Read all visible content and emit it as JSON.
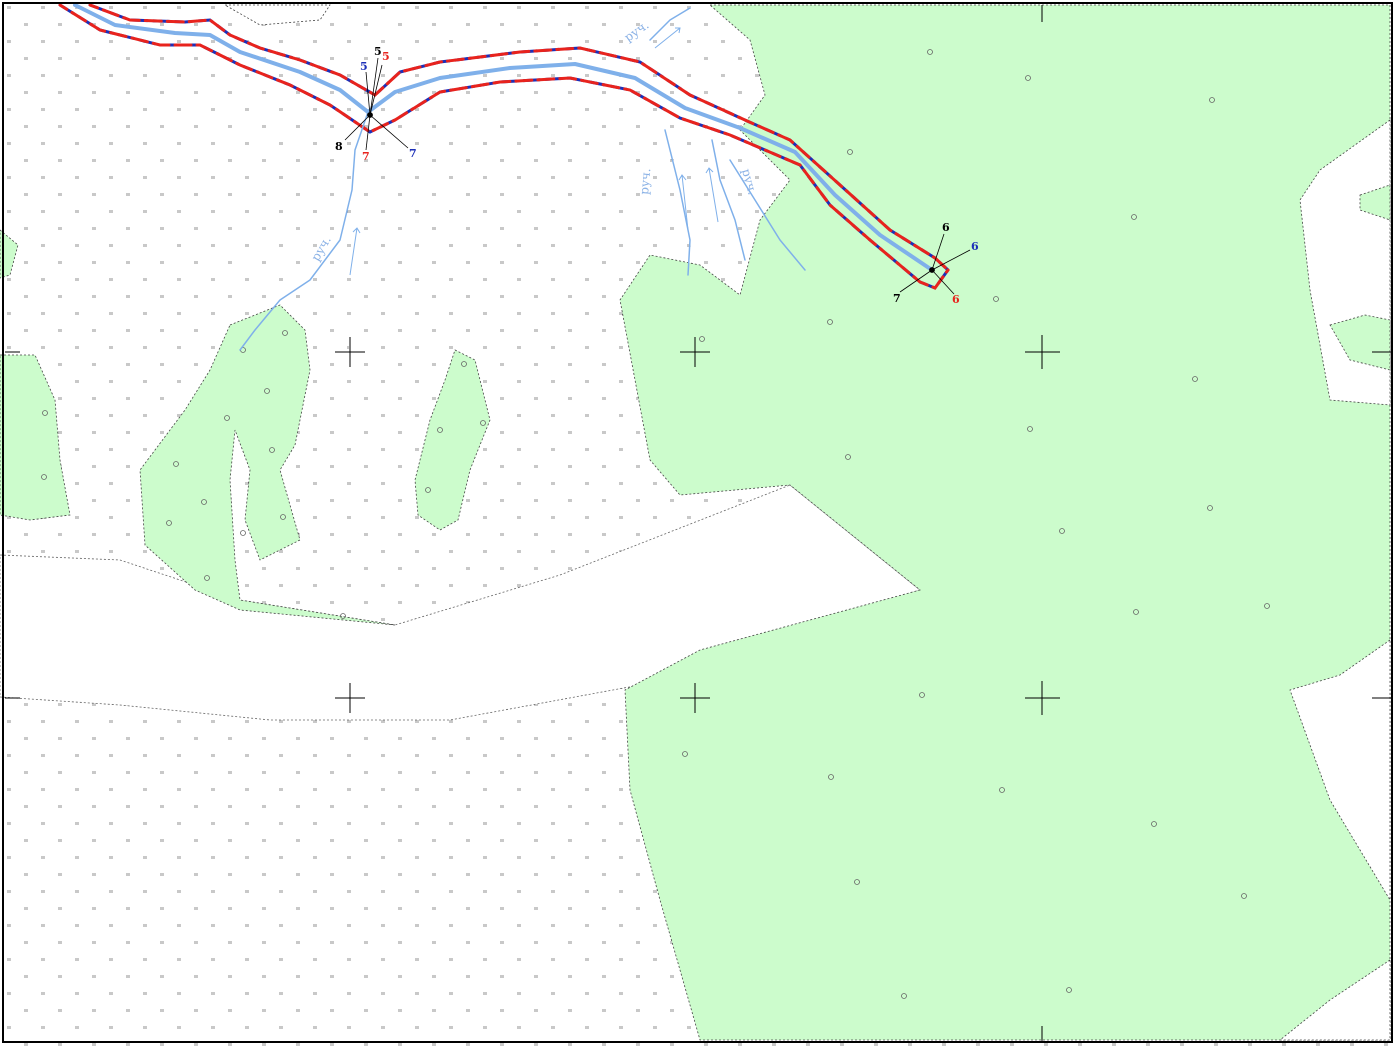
{
  "colors": {
    "forest": "#ccfccc",
    "open": "#ffffff",
    "water": "#7fb0ea",
    "zone_red": "#e8231d",
    "zone_blue": "#1c2fb8",
    "marker": "#000000",
    "frame": "#000000",
    "crosshair": "#000000",
    "pattern": "#555555"
  },
  "stream_labels": {
    "top": "руч.",
    "left": "руч.",
    "right_a": "руч.",
    "right_b": "руч."
  },
  "points": {
    "p5_black": "5",
    "p5_blue": "5",
    "p5_red": "5",
    "p7_red": "7",
    "p7_blue": "7",
    "p8_black": "8",
    "p6_black": "6",
    "p6_blue": "6",
    "p6_red": "6",
    "p7_black": "7"
  },
  "icons": {
    "crosshair": "grid-cross-icon",
    "forest": "circle-symbol-icon",
    "meadow": "double-tick-symbol-icon"
  }
}
